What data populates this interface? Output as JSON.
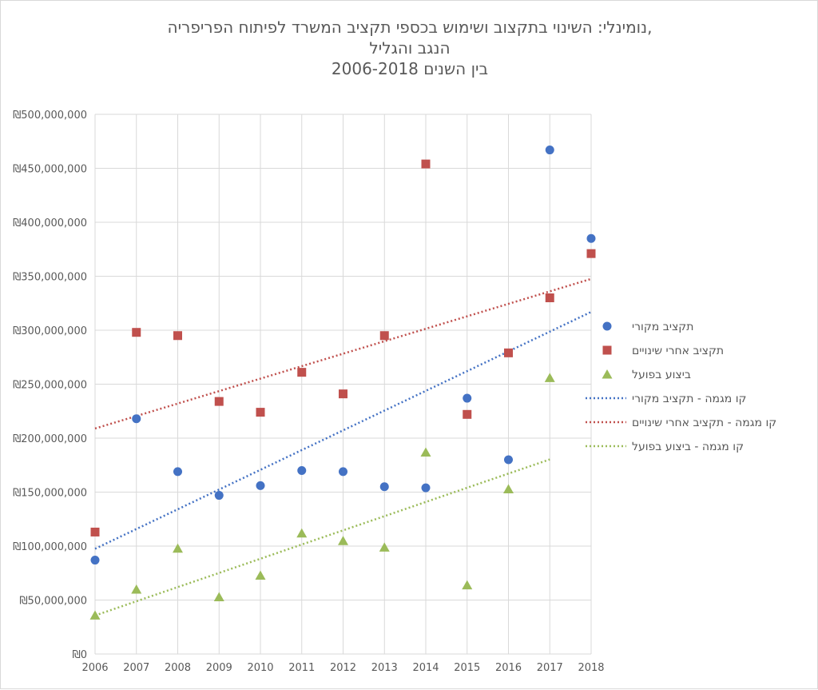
{
  "chart_data": {
    "type": "scatter",
    "title": [
      "נומינלי: השינוי בתקצוב ושימוש בכספי תקציב המשרד לפיתוח הפריפריה,",
      "הנגב והגליל",
      "בין השנים 2006-2018"
    ],
    "xlabel": "",
    "ylabel": "",
    "xlim": [
      2006,
      2018
    ],
    "ylim": [
      0,
      500000000
    ],
    "x_ticks": [
      "2006",
      "2007",
      "2008",
      "2009",
      "2010",
      "2011",
      "2012",
      "2013",
      "2014",
      "2015",
      "2016",
      "2017",
      "2018"
    ],
    "y_ticks": [
      "₪0",
      "₪50,000,000",
      "₪100,000,000",
      "₪150,000,000",
      "₪200,000,000",
      "₪250,000,000",
      "₪300,000,000",
      "₪350,000,000",
      "₪400,000,000",
      "₪450,000,000",
      "₪500,000,000"
    ],
    "y_tick_values": [
      0,
      50000000,
      100000000,
      150000000,
      200000000,
      250000000,
      300000000,
      350000000,
      400000000,
      450000000,
      500000000
    ],
    "grid": true,
    "legend_placement": "right",
    "series": [
      {
        "name": "תקציב מקורי",
        "marker": "circle",
        "color": "#4472c4",
        "x": [
          2006,
          2007,
          2008,
          2009,
          2010,
          2011,
          2012,
          2013,
          2014,
          2015,
          2016,
          2017,
          2018
        ],
        "values": [
          87000000,
          218000000,
          169000000,
          147000000,
          156000000,
          170000000,
          169000000,
          155000000,
          154000000,
          237000000,
          180000000,
          467000000,
          385000000
        ]
      },
      {
        "name": "תקציב אחרי שינויים",
        "marker": "square",
        "color": "#c0504d",
        "x": [
          2006,
          2007,
          2008,
          2009,
          2010,
          2011,
          2012,
          2013,
          2014,
          2015,
          2016,
          2017,
          2018
        ],
        "values": [
          113000000,
          298000000,
          295000000,
          234000000,
          224000000,
          261000000,
          241000000,
          295000000,
          454000000,
          222000000,
          279000000,
          330000000,
          371000000
        ]
      },
      {
        "name": "ביצוע בפועל",
        "marker": "triangle",
        "color": "#9bbb59",
        "x": [
          2006,
          2007,
          2008,
          2009,
          2010,
          2011,
          2012,
          2013,
          2014,
          2015,
          2016,
          2017
        ],
        "values": [
          36000000,
          60000000,
          98000000,
          53000000,
          73000000,
          112000000,
          105000000,
          99000000,
          187000000,
          64000000,
          153000000,
          256000000
        ]
      }
    ],
    "trendlines": [
      {
        "name": "קו מגמה - תקציב מקורי",
        "series": 0,
        "type": "linear",
        "style": "dotted",
        "color": "#4472c4"
      },
      {
        "name": "קו מגמה - תקציב אחרי שינויים",
        "series": 1,
        "type": "linear",
        "style": "dotted",
        "color": "#c0504d"
      },
      {
        "name": "קו מגמה - ביצוע בפועל",
        "series": 2,
        "type": "linear",
        "style": "dotted",
        "color": "#9bbb59"
      }
    ]
  }
}
